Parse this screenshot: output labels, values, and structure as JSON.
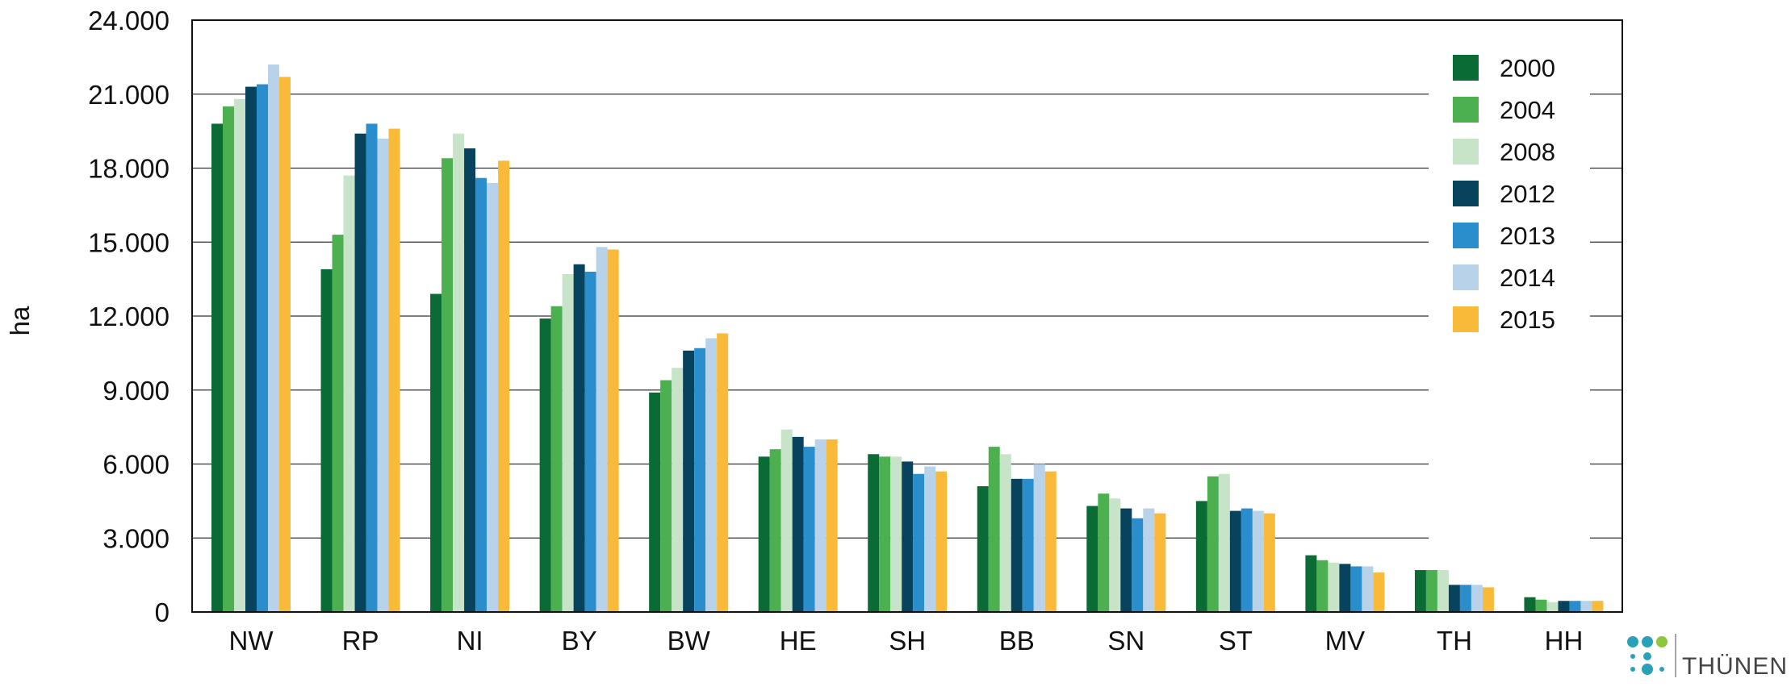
{
  "chart_data": {
    "type": "bar",
    "ylabel": "ha",
    "xlabel": "",
    "ylim": [
      0,
      24000
    ],
    "yticks": [
      0,
      3000,
      6000,
      9000,
      12000,
      15000,
      18000,
      21000,
      24000
    ],
    "ytick_labels": [
      "0",
      "3.000",
      "6.000",
      "9.000",
      "12.000",
      "15.000",
      "18.000",
      "21.000",
      "24.000"
    ],
    "grid": true,
    "legend_position": "top-right",
    "categories": [
      "NW",
      "RP",
      "NI",
      "BY",
      "BW",
      "HE",
      "SH",
      "BB",
      "SN",
      "ST",
      "MV",
      "TH",
      "HH"
    ],
    "series": [
      {
        "name": "2000",
        "color": "#0a6b35",
        "values": [
          19800,
          13900,
          12900,
          11900,
          8900,
          6300,
          6400,
          5100,
          4300,
          4500,
          2300,
          1700,
          600
        ]
      },
      {
        "name": "2004",
        "color": "#4caf50",
        "values": [
          20500,
          15300,
          18400,
          12400,
          9400,
          6600,
          6300,
          6700,
          4800,
          5500,
          2100,
          1700,
          500
        ]
      },
      {
        "name": "2008",
        "color": "#c7e3c8",
        "values": [
          20800,
          17700,
          19400,
          13700,
          9900,
          7400,
          6300,
          6400,
          4600,
          5600,
          2000,
          1700,
          400
        ]
      },
      {
        "name": "2012",
        "color": "#08435e",
        "values": [
          21300,
          19400,
          18800,
          14100,
          10600,
          7100,
          6100,
          5400,
          4200,
          4100,
          1950,
          1100,
          450
        ]
      },
      {
        "name": "2013",
        "color": "#2b8ecc",
        "values": [
          21400,
          19800,
          17600,
          13800,
          10700,
          6700,
          5600,
          5400,
          3800,
          4200,
          1850,
          1100,
          450
        ]
      },
      {
        "name": "2014",
        "color": "#b8d2ea",
        "values": [
          22200,
          19200,
          17400,
          14800,
          11100,
          7000,
          5900,
          6000,
          4200,
          4100,
          1850,
          1100,
          450
        ]
      },
      {
        "name": "2015",
        "color": "#f9ba3a",
        "values": [
          21700,
          19600,
          18300,
          14700,
          11300,
          7000,
          5700,
          5700,
          4000,
          4000,
          1600,
          1000,
          450
        ]
      }
    ]
  },
  "branding": {
    "name": "THÜNEN"
  }
}
